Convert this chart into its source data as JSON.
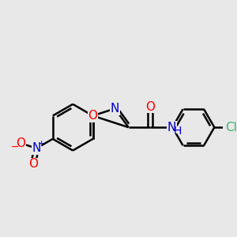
{
  "background_color": "#e8e8e8",
  "bond_color": "#000000",
  "atom_colors": {
    "O": "#ff0000",
    "N": "#0000cd",
    "Cl": "#3cb371",
    "H": "#0000cd"
  },
  "bond_width": 1.8,
  "font_size_atom": 11,
  "bg": "#e8e8e8"
}
